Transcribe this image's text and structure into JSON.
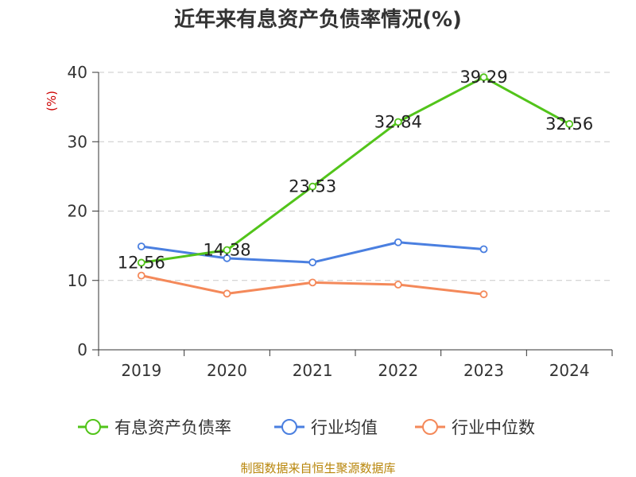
{
  "chart_data": {
    "type": "line",
    "title": "近年来有息资产负债率情况(%)",
    "ylabel": "(%)",
    "xlabel": "",
    "categories": [
      "2019",
      "2020",
      "2021",
      "2022",
      "2023",
      "2024"
    ],
    "ylim": [
      0,
      40
    ],
    "yticks": [
      0,
      10,
      20,
      30,
      40
    ],
    "grid": true,
    "legend_position": "bottom",
    "series": [
      {
        "name": "有息资产负债率",
        "color": "#52c41a",
        "values": [
          12.56,
          14.38,
          23.53,
          32.84,
          39.29,
          32.56
        ],
        "labels": [
          "12.56",
          "14.38",
          "23.53",
          "32.84",
          "39.29",
          "32.56"
        ]
      },
      {
        "name": "行业均值",
        "color": "#4a7fe0",
        "values": [
          14.9,
          13.2,
          12.6,
          15.5,
          14.5,
          null
        ]
      },
      {
        "name": "行业中位数",
        "color": "#f4895a",
        "values": [
          10.7,
          8.1,
          9.7,
          9.4,
          8.0,
          null
        ]
      }
    ]
  },
  "source": "制图数据来自恒生聚源数据库"
}
